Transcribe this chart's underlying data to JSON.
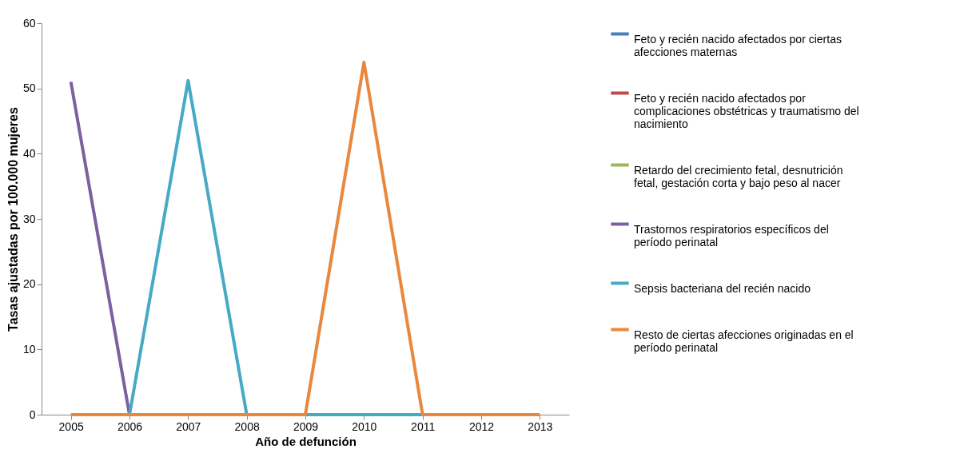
{
  "chart_data": {
    "type": "line",
    "xlabel": "Año de defunción",
    "ylabel": "Tasas ajustadas por 100.000 mujeres",
    "categories": [
      "2005",
      "2006",
      "2007",
      "2008",
      "2009",
      "2010",
      "2011",
      "2012",
      "2013"
    ],
    "ylim": [
      0,
      60
    ],
    "yticks": [
      0,
      10,
      20,
      30,
      40,
      50,
      60
    ],
    "grid": false,
    "legend": "right",
    "marker": "none",
    "line_style": "solid",
    "series": [
      {
        "name": "Feto y recién nacido afectados por ciertas afecciones maternas",
        "color": "#4a7ebb",
        "values": [
          null,
          null,
          null,
          null,
          null,
          null,
          null,
          null,
          null
        ]
      },
      {
        "name": "Feto y recién nacido afectados por complicaciones obstétricas y traumatismo del nacimiento",
        "color": "#be4b48",
        "values": [
          null,
          null,
          null,
          null,
          null,
          null,
          null,
          null,
          null
        ]
      },
      {
        "name": "Retardo del crecimiento fetal, desnutrición fetal, gestación corta y bajo peso al nacer",
        "color": "#98b954",
        "values": [
          null,
          null,
          null,
          null,
          null,
          null,
          null,
          null,
          null
        ]
      },
      {
        "name": "Trastornos respiratorios específicos del período perinatal",
        "color": "#7d60a0",
        "values": [
          51,
          0,
          null,
          null,
          null,
          null,
          null,
          null,
          null
        ]
      },
      {
        "name": "Sepsis bacteriana del recién nacido",
        "color": "#46aac5",
        "values": [
          null,
          0,
          51.2,
          0,
          0,
          0,
          0,
          null,
          null
        ]
      },
      {
        "name": "Resto de ciertas afecciones originadas en el período perinatal",
        "color": "#e8883e",
        "values": [
          0,
          0,
          0,
          0,
          0,
          54,
          0,
          0,
          0
        ]
      }
    ]
  }
}
